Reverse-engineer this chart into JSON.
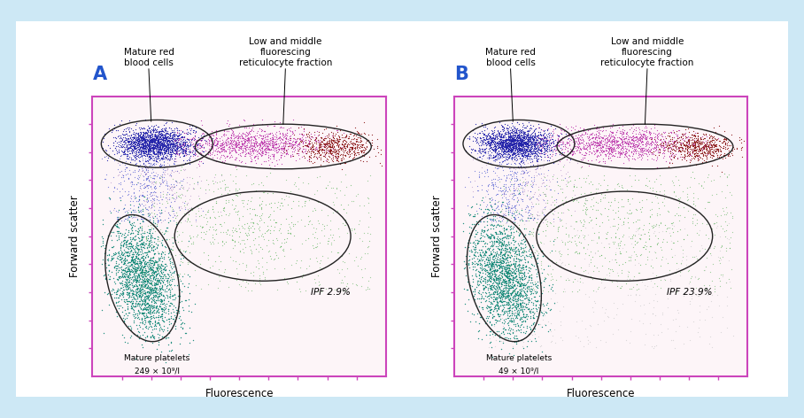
{
  "background_color": "#cde8f5",
  "white_panel_bg": "#ffffff",
  "plot_bg": "#fdf5f8",
  "axis_color": "#cc44bb",
  "fig_width": 9.08,
  "fig_height": 4.72,
  "panel_A": {
    "label": "A",
    "ipf_text": "IPF 2.9%",
    "platelets_line1": "Mature platelets",
    "platelets_line2": "249 × 10⁹/l",
    "xlabel": "Fluorescence",
    "ylabel": "Forward scatter"
  },
  "panel_B": {
    "label": "B",
    "ipf_text": "IPF 23.9%",
    "platelets_line1": "Mature platelets",
    "platelets_line2": "49 × 10⁹/l",
    "xlabel": "Fluorescence",
    "ylabel": "Forward scatter"
  },
  "annotation_rbc": "Mature red\nblood cells",
  "annotation_reticulocyte": "Low and middle\nfluorescing\nreticulocyte fraction",
  "colors": {
    "blue_rbc": "#2222aa",
    "magenta": "#bb33aa",
    "dark_red": "#881111",
    "teal": "#118877",
    "light_green": "#44aa44",
    "scatter_blue": "#3344cc",
    "scatter_purple": "#8855aa",
    "light_gray": "#bbbbbb",
    "label_color": "#2255cc"
  },
  "seed_A": 42,
  "seed_B": 123
}
